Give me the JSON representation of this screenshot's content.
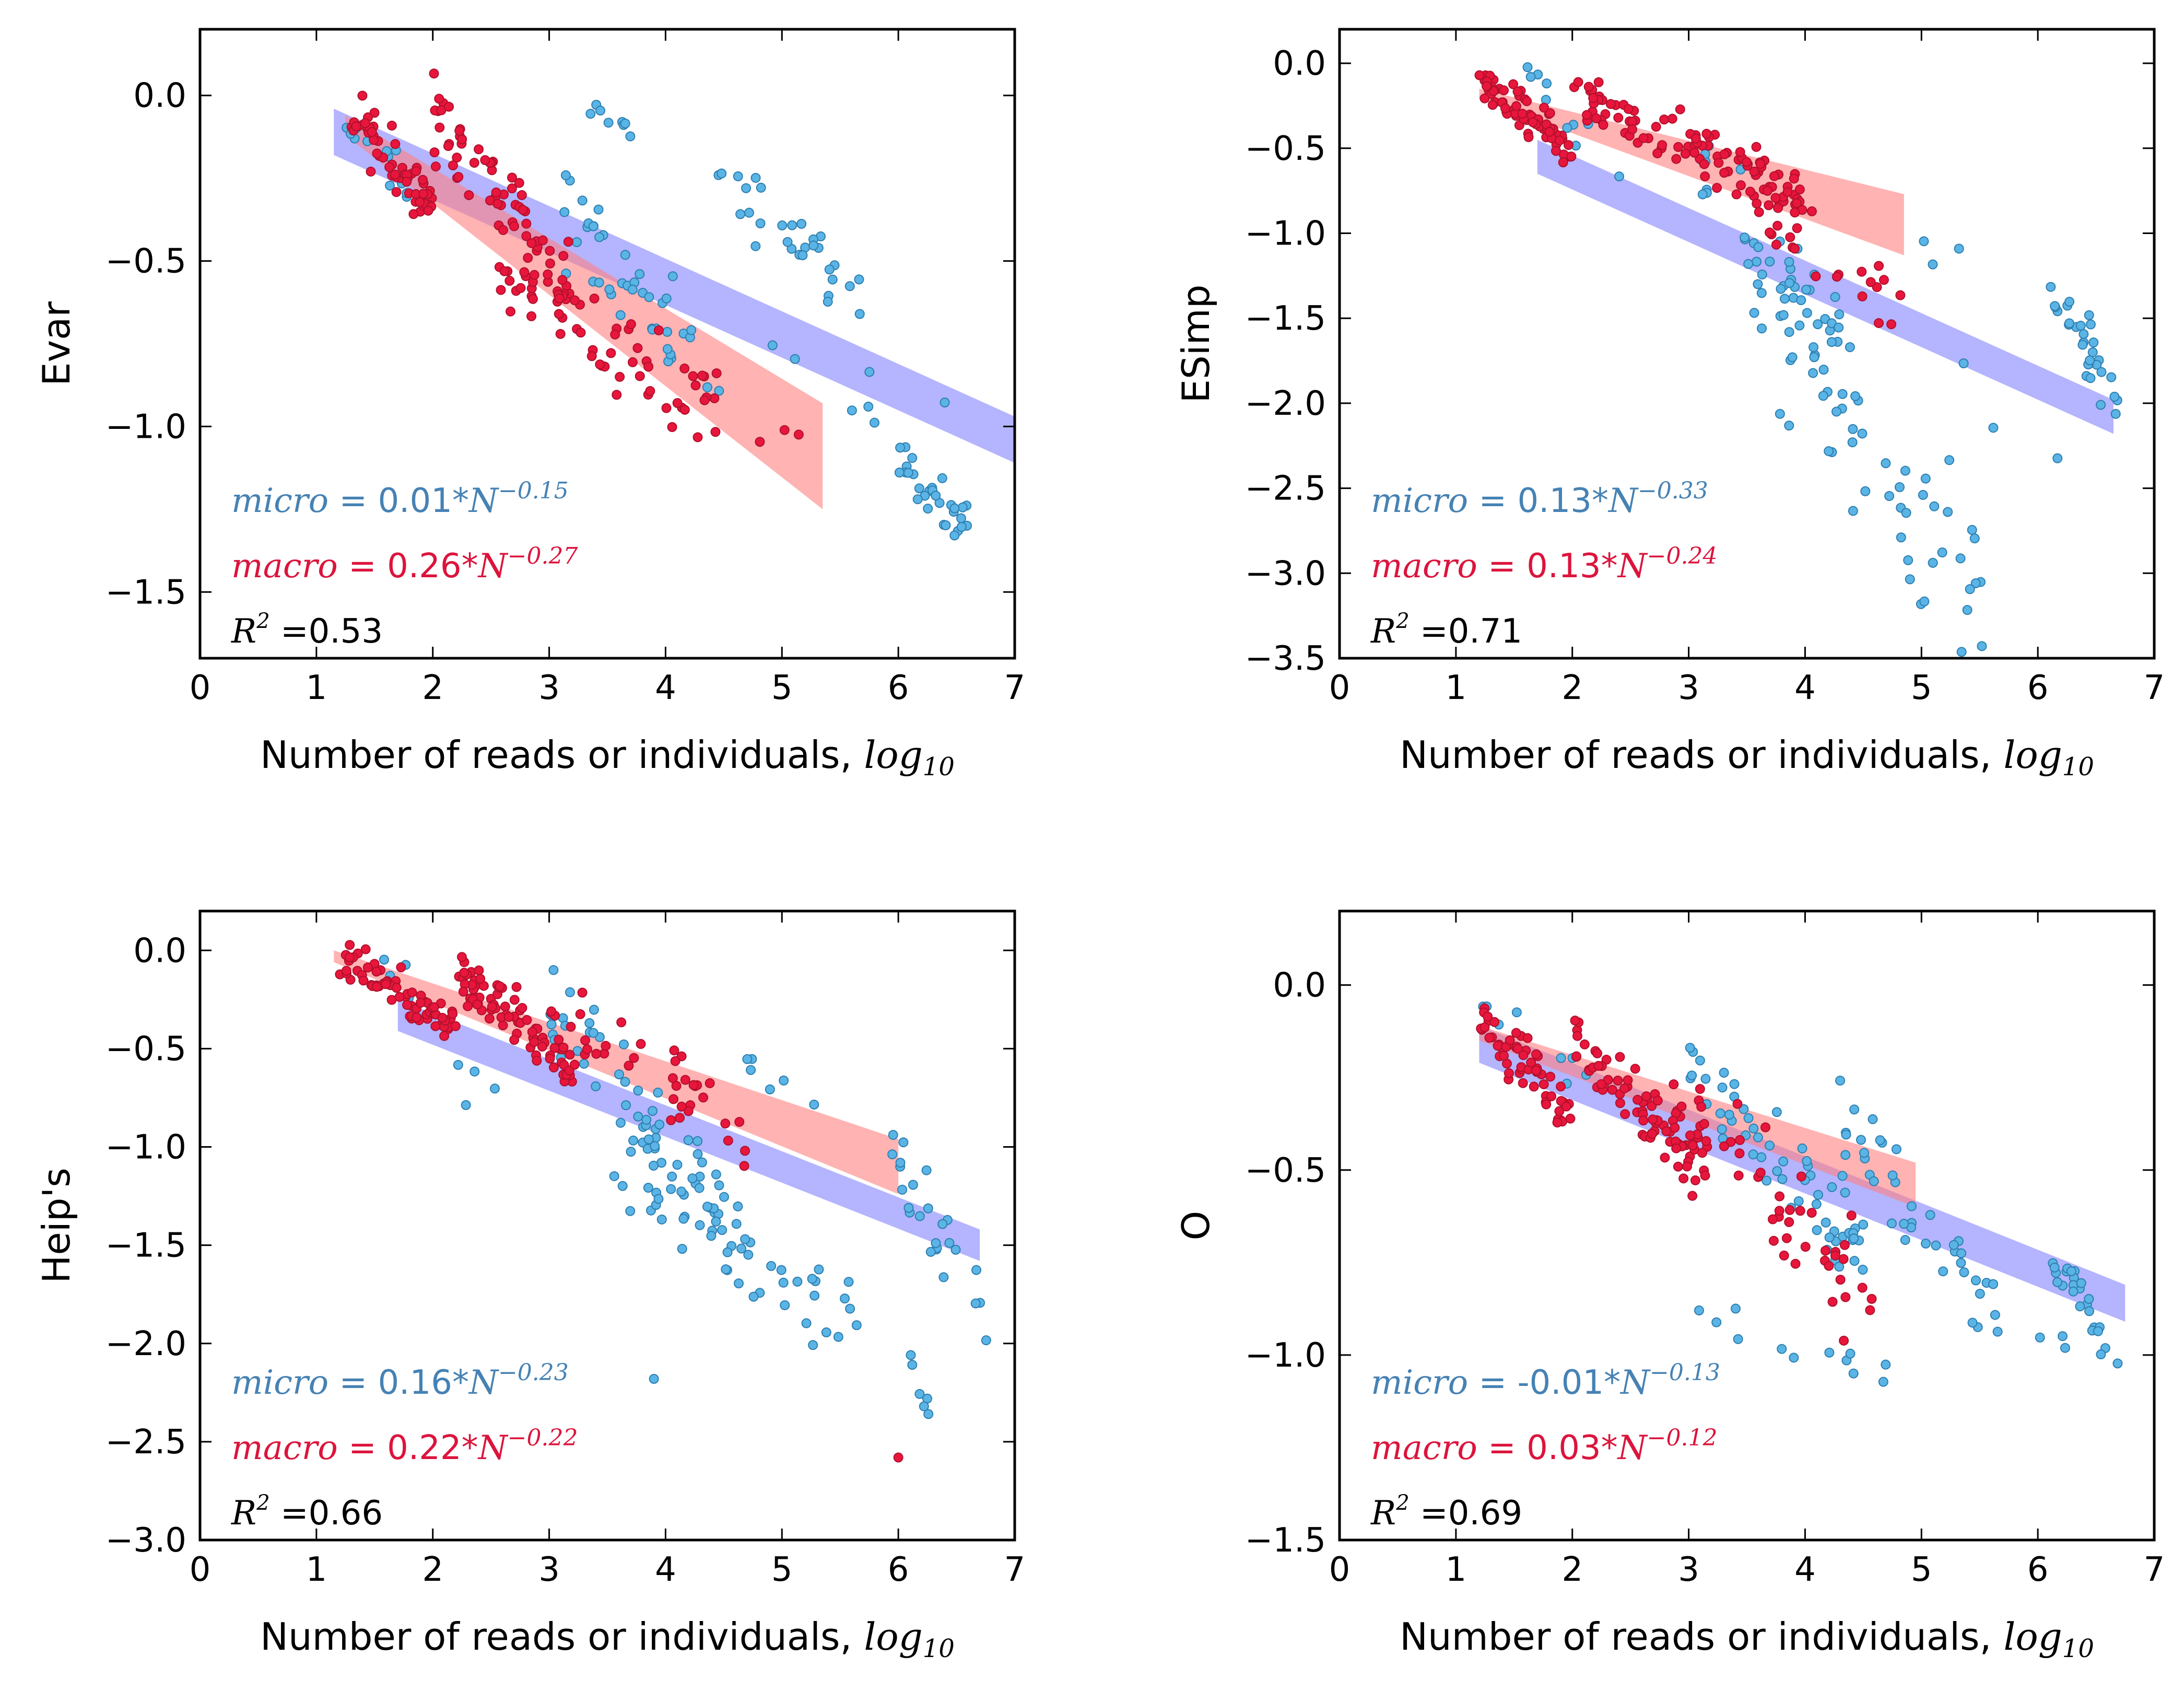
{
  "colors": {
    "micro_points": "#5ab4e5",
    "micro_edge": "#2e7fb0",
    "macro_points": "#e8163c",
    "macro_edge": "#b0102c",
    "micro_band": "#7777ff",
    "macro_band": "#ff8080",
    "micro_text": "#4682b4",
    "macro_text": "#dc143c"
  },
  "chart_data": [
    {
      "type": "scatter",
      "panel": "top-left",
      "xlabel": "Number of reads or individuals,",
      "xlabel_math": "log",
      "xlabel_sub": "10",
      "ylabel": "Evar",
      "xlim": [
        0,
        7
      ],
      "ylim": [
        -1.7,
        0.2
      ],
      "xticks": [
        0,
        1,
        2,
        3,
        4,
        5,
        6,
        7
      ],
      "yticks": [
        0.0,
        -0.5,
        -1.0,
        -1.5
      ],
      "ytick_labels": [
        "0.0",
        "−0.5",
        "−1.0",
        "−1.5"
      ],
      "micro_fit": {
        "x": [
          1.15,
          7.0
        ],
        "y_center": [
          -0.11,
          -1.04
        ],
        "halfwidth": 0.07
      },
      "macro_fit": {
        "x": [
          1.25,
          5.35
        ],
        "y_center": [
          -0.09,
          -1.09
        ],
        "halfwidth_start": 0.03,
        "halfwidth_end": 0.16
      },
      "clusters": [
        {
          "series": "micro",
          "n": 8,
          "cx": [
            3.3,
            3.8
          ],
          "cy": [
            -0.05,
            -0.12
          ]
        },
        {
          "series": "micro",
          "n": 40,
          "cx": [
            3.0,
            4.5
          ],
          "cy": [
            -0.3,
            -0.9
          ]
        },
        {
          "series": "micro",
          "n": 30,
          "cx": [
            4.4,
            5.7
          ],
          "cy": [
            -0.25,
            -0.6
          ]
        },
        {
          "series": "micro",
          "n": 30,
          "cx": [
            6.0,
            6.6
          ],
          "cy": [
            -1.1,
            -1.3
          ]
        },
        {
          "series": "micro",
          "n": 12,
          "cx": [
            1.15,
            1.8
          ],
          "cy": [
            -0.01,
            -0.3
          ]
        },
        {
          "series": "micro",
          "n": 10,
          "cx": [
            4.0,
            7.0
          ],
          "cy": [
            -0.7,
            -1.05
          ]
        },
        {
          "series": "macro",
          "n": 60,
          "cx": [
            1.3,
            2.0
          ],
          "cy": [
            -0.05,
            -0.35
          ]
        },
        {
          "series": "macro",
          "n": 70,
          "cx": [
            2.0,
            3.2
          ],
          "cy": [
            -0.05,
            -0.6
          ]
        },
        {
          "series": "macro",
          "n": 60,
          "cx": [
            2.5,
            4.5
          ],
          "cy": [
            -0.5,
            -0.95
          ]
        },
        {
          "series": "macro",
          "n": 4,
          "cx": [
            3.8,
            5.4
          ],
          "cy": [
            -1.0,
            -1.05
          ]
        }
      ],
      "annotations": {
        "micro_label": "micro",
        "micro_eq": " = 0.01*",
        "micro_N": "N",
        "micro_exp": "−0.15",
        "macro_label": "macro",
        "macro_eq": " = 0.26*",
        "macro_N": "N",
        "macro_exp": "−0.27",
        "r2_R": "R",
        "r2_sup": "2",
        "r2_value": " =0.53"
      }
    },
    {
      "type": "scatter",
      "panel": "top-right",
      "xlabel": "Number of reads or individuals,",
      "xlabel_math": "log",
      "xlabel_sub": "10",
      "ylabel": "ESimp",
      "xlim": [
        0,
        7
      ],
      "ylim": [
        -3.5,
        0.2
      ],
      "xticks": [
        0,
        1,
        2,
        3,
        4,
        5,
        6,
        7
      ],
      "yticks": [
        0.0,
        -0.5,
        -1.0,
        -1.5,
        -2.0,
        -2.5,
        -3.0,
        -3.5
      ],
      "ytick_labels": [
        "0.0",
        "−0.5",
        "−1.0",
        "−1.5",
        "−2.0",
        "−2.5",
        "−3.0",
        "−3.5"
      ],
      "micro_fit": {
        "x": [
          1.7,
          6.65
        ],
        "y_center": [
          -0.55,
          -2.08
        ],
        "halfwidth": 0.1
      },
      "macro_fit": {
        "x": [
          1.2,
          4.85
        ],
        "y_center": [
          -0.18,
          -0.95
        ],
        "halfwidth_start": 0.03,
        "halfwidth_end": 0.18
      },
      "clusters": [
        {
          "series": "micro",
          "n": 40,
          "cx": [
            3.0,
            4.3
          ],
          "cy": [
            -0.5,
            -1.7
          ]
        },
        {
          "series": "micro",
          "n": 60,
          "cx": [
            3.5,
            5.6
          ],
          "cy": [
            -1.3,
            -3.2
          ]
        },
        {
          "series": "micro",
          "n": 30,
          "cx": [
            6.1,
            6.7
          ],
          "cy": [
            -1.3,
            -2.0
          ]
        },
        {
          "series": "micro",
          "n": 10,
          "cx": [
            1.5,
            2.5
          ],
          "cy": [
            -0.05,
            -0.7
          ]
        },
        {
          "series": "micro",
          "n": 6,
          "cx": [
            5.0,
            6.2
          ],
          "cy": [
            -1.1,
            -2.7
          ]
        },
        {
          "series": "macro",
          "n": 70,
          "cx": [
            1.2,
            2.0
          ],
          "cy": [
            -0.1,
            -0.5
          ]
        },
        {
          "series": "macro",
          "n": 100,
          "cx": [
            2.0,
            4.0
          ],
          "cy": [
            -0.2,
            -0.8
          ]
        },
        {
          "series": "macro",
          "n": 30,
          "cx": [
            3.0,
            4.9
          ],
          "cy": [
            -0.6,
            -1.5
          ]
        }
      ],
      "annotations": {
        "micro_label": "micro",
        "micro_eq": " = 0.13*",
        "micro_N": "N",
        "micro_exp": "−0.33",
        "macro_label": "macro",
        "macro_eq": " = 0.13*",
        "macro_N": "N",
        "macro_exp": "−0.24",
        "r2_R": "R",
        "r2_sup": "2",
        "r2_value": " =0.71"
      }
    },
    {
      "type": "scatter",
      "panel": "bottom-left",
      "xlabel": "Number of reads or individuals,",
      "xlabel_math": "log",
      "xlabel_sub": "10",
      "ylabel": "Heip's",
      "xlim": [
        0,
        7
      ],
      "ylim": [
        -3.0,
        0.2
      ],
      "xticks": [
        0,
        1,
        2,
        3,
        4,
        5,
        6,
        7
      ],
      "yticks": [
        0.0,
        -0.5,
        -1.0,
        -1.5,
        -2.0,
        -2.5,
        -3.0
      ],
      "ytick_labels": [
        "0.0",
        "−0.5",
        "−1.0",
        "−1.5",
        "−2.0",
        "−2.5",
        "−3.0"
      ],
      "micro_fit": {
        "x": [
          1.7,
          6.7
        ],
        "y_center": [
          -0.33,
          -1.5
        ],
        "halfwidth": 0.08
      },
      "macro_fit": {
        "x": [
          1.15,
          6.0
        ],
        "y_center": [
          -0.03,
          -1.1
        ],
        "halfwidth_start": 0.03,
        "halfwidth_end": 0.14
      },
      "clusters": [
        {
          "series": "micro",
          "n": 50,
          "cx": [
            3.0,
            4.5
          ],
          "cy": [
            -0.3,
            -1.3
          ]
        },
        {
          "series": "micro",
          "n": 60,
          "cx": [
            3.5,
            5.7
          ],
          "cy": [
            -1.0,
            -2.0
          ]
        },
        {
          "series": "micro",
          "n": 25,
          "cx": [
            5.9,
            6.8
          ],
          "cy": [
            -1.0,
            -1.9
          ]
        },
        {
          "series": "micro",
          "n": 6,
          "cx": [
            6.1,
            6.3
          ],
          "cy": [
            -2.0,
            -2.5
          ]
        },
        {
          "series": "micro",
          "n": 10,
          "cx": [
            1.5,
            2.6
          ],
          "cy": [
            -0.1,
            -0.8
          ]
        },
        {
          "series": "micro",
          "n": 6,
          "cx": [
            4.7,
            5.3
          ],
          "cy": [
            -0.6,
            -0.8
          ]
        },
        {
          "series": "macro",
          "n": 70,
          "cx": [
            1.2,
            2.2
          ],
          "cy": [
            -0.03,
            -0.4
          ]
        },
        {
          "series": "macro",
          "n": 80,
          "cx": [
            2.2,
            3.2
          ],
          "cy": [
            -0.1,
            -0.6
          ]
        },
        {
          "series": "macro",
          "n": 40,
          "cx": [
            3.0,
            4.8
          ],
          "cy": [
            -0.3,
            -1.0
          ]
        }
      ],
      "extra_points": [
        {
          "series": "macro",
          "x": 6.0,
          "y": -2.58
        },
        {
          "series": "micro",
          "x": 3.9,
          "y": -2.18
        }
      ],
      "annotations": {
        "micro_label": "micro",
        "micro_eq": " = 0.16*",
        "micro_N": "N",
        "micro_exp": "−0.23",
        "macro_label": "macro",
        "macro_eq": " = 0.22*",
        "macro_N": "N",
        "macro_exp": "−0.22",
        "r2_R": "R",
        "r2_sup": "2",
        "r2_value": " =0.66"
      }
    },
    {
      "type": "scatter",
      "panel": "bottom-right",
      "xlabel": "Number of reads or individuals,",
      "xlabel_math": "log",
      "xlabel_sub": "10",
      "ylabel": "O",
      "xlim": [
        0,
        7
      ],
      "ylim": [
        -1.5,
        0.2
      ],
      "xticks": [
        0,
        1,
        2,
        3,
        4,
        5,
        6,
        7
      ],
      "yticks": [
        0.0,
        -0.5,
        -1.0,
        -1.5
      ],
      "ytick_labels": [
        "0.0",
        "−0.5",
        "−1.0",
        "−1.5"
      ],
      "micro_fit": {
        "x": [
          1.2,
          6.75
        ],
        "y_center": [
          -0.16,
          -0.86
        ],
        "halfwidth": 0.05
      },
      "macro_fit": {
        "x": [
          1.2,
          4.95
        ],
        "y_center": [
          -0.13,
          -0.54
        ],
        "halfwidth_start": 0.02,
        "halfwidth_end": 0.06
      },
      "clusters": [
        {
          "series": "micro",
          "n": 60,
          "cx": [
            3.0,
            4.5
          ],
          "cy": [
            -0.2,
            -0.7
          ]
        },
        {
          "series": "micro",
          "n": 40,
          "cx": [
            4.3,
            5.7
          ],
          "cy": [
            -0.35,
            -0.9
          ]
        },
        {
          "series": "micro",
          "n": 25,
          "cx": [
            6.1,
            6.6
          ],
          "cy": [
            -0.75,
            -0.95
          ]
        },
        {
          "series": "micro",
          "n": 12,
          "cx": [
            3.0,
            4.8
          ],
          "cy": [
            -0.9,
            -1.05
          ]
        },
        {
          "series": "micro",
          "n": 8,
          "cx": [
            1.2,
            2.2
          ],
          "cy": [
            -0.02,
            -0.3
          ]
        },
        {
          "series": "micro",
          "n": 4,
          "cx": [
            6.0,
            6.8
          ],
          "cy": [
            -0.95,
            -1.02
          ]
        },
        {
          "series": "macro",
          "n": 60,
          "cx": [
            1.2,
            2.0
          ],
          "cy": [
            -0.1,
            -0.35
          ]
        },
        {
          "series": "macro",
          "n": 80,
          "cx": [
            2.0,
            3.2
          ],
          "cy": [
            -0.15,
            -0.5
          ]
        },
        {
          "series": "macro",
          "n": 50,
          "cx": [
            2.8,
            4.6
          ],
          "cy": [
            -0.3,
            -0.85
          ]
        }
      ],
      "annotations": {
        "micro_label": "micro",
        "micro_eq": " = -0.01*",
        "micro_N": "N",
        "micro_exp": "−0.13",
        "macro_label": "macro",
        "macro_eq": " = 0.03*",
        "macro_N": "N",
        "macro_exp": "−0.12",
        "r2_R": "R",
        "r2_sup": "2",
        "r2_value": " =0.69"
      }
    }
  ]
}
